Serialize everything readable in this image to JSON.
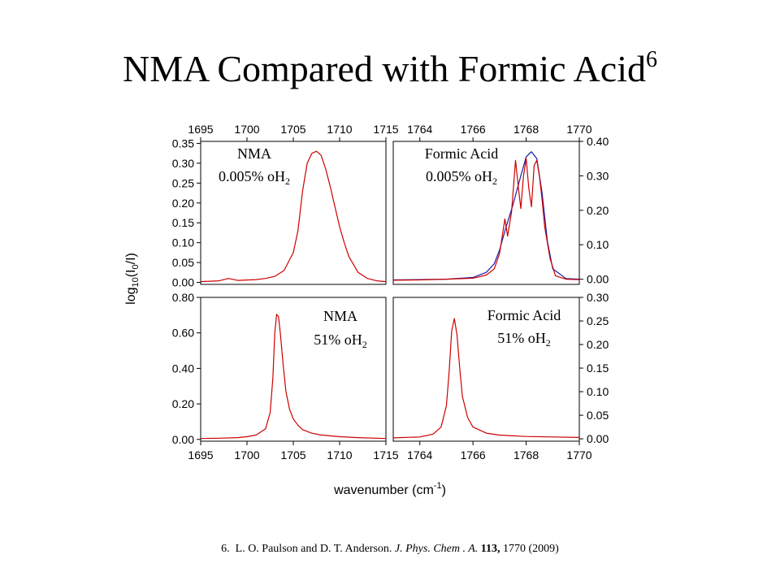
{
  "slide": {
    "title": "NMA Compared with Formic Acid",
    "title_superscript": "6",
    "footnote": {
      "number": "6.",
      "authors": "L. O. Paulson and D. T. Anderson.",
      "journal": "J. Phys. Chem . A.",
      "volume": "113,",
      "pages_year": "1770 (2009)"
    }
  },
  "chart_data": {
    "type": "line",
    "xlabel": "wavenumber (cm-1)",
    "ylabel": "log10(I0/I)",
    "colors": {
      "red": "#cc0000",
      "blue": "#1a1aa8"
    },
    "panels": [
      {
        "id": "nma-low",
        "xlim": [
          1695,
          1715
        ],
        "ylim": [
          -0.005,
          0.355
        ],
        "xticks": [
          1695,
          1700,
          1705,
          1710,
          1715
        ],
        "yticks": [
          0.0,
          0.05,
          0.1,
          0.15,
          0.2,
          0.25,
          0.3,
          0.35
        ],
        "ytick_labels": [
          "0.00",
          "0.05",
          "0.10",
          "0.15",
          "0.20",
          "0.25",
          "0.30",
          "0.35"
        ],
        "ytick_side": "left",
        "xticklabels_side": "top",
        "annotation": {
          "line1": "NMA",
          "line2": "0.005% oH",
          "sub": "2"
        },
        "series": [
          {
            "color": "red",
            "x": [
              1695,
              1696,
              1697,
              1698,
              1699,
              1700,
              1701,
              1702,
              1703,
              1704,
              1705,
              1705.5,
              1706,
              1706.5,
              1707,
              1707.5,
              1708,
              1708.5,
              1709,
              1709.5,
              1710,
              1710.5,
              1711,
              1712,
              1713,
              1714,
              1715
            ],
            "y": [
              0.002,
              0.003,
              0.004,
              0.01,
              0.005,
              0.006,
              0.007,
              0.01,
              0.015,
              0.03,
              0.075,
              0.13,
              0.23,
              0.3,
              0.325,
              0.33,
              0.32,
              0.285,
              0.24,
              0.19,
              0.14,
              0.1,
              0.065,
              0.025,
              0.01,
              0.004,
              0.002
            ]
          }
        ]
      },
      {
        "id": "fa-low",
        "xlim": [
          1763.0,
          1770
        ],
        "ylim": [
          -0.015,
          0.4
        ],
        "xticks": [
          1764,
          1766,
          1768,
          1770
        ],
        "yticks": [
          0.0,
          0.1,
          0.2,
          0.3,
          0.4
        ],
        "ytick_labels": [
          "0.00",
          "0.10",
          "0.20",
          "0.30",
          "0.40"
        ],
        "ytick_side": "right",
        "xticklabels_side": "top",
        "annotation": {
          "line1": "Formic Acid",
          "line2": "0.005% oH",
          "sub": "2"
        },
        "series": [
          {
            "color": "blue",
            "x": [
              1763.0,
              1764,
              1765,
              1766,
              1766.5,
              1766.8,
              1767.0,
              1767.2,
              1767.5,
              1767.8,
              1768.0,
              1768.2,
              1768.4,
              1768.6,
              1768.8,
              1769.0,
              1769.5,
              1770
            ],
            "y": [
              -0.002,
              -0.001,
              0.0,
              0.005,
              0.02,
              0.045,
              0.085,
              0.14,
              0.215,
              0.3,
              0.355,
              0.37,
              0.35,
              0.25,
              0.11,
              0.03,
              0.002,
              0.0
            ]
          },
          {
            "color": "red",
            "x": [
              1763.0,
              1764,
              1765,
              1766,
              1766.5,
              1766.8,
              1767.0,
              1767.2,
              1767.3,
              1767.45,
              1767.6,
              1767.7,
              1767.8,
              1767.9,
              1768.0,
              1768.1,
              1768.2,
              1768.3,
              1768.4,
              1768.5,
              1768.6,
              1768.7,
              1768.9,
              1769.1,
              1769.5,
              1770
            ],
            "y": [
              -0.003,
              -0.002,
              0.0,
              0.003,
              0.012,
              0.03,
              0.075,
              0.175,
              0.125,
              0.195,
              0.345,
              0.27,
              0.205,
              0.3,
              0.35,
              0.265,
              0.21,
              0.33,
              0.345,
              0.3,
              0.23,
              0.15,
              0.06,
              0.01,
              0.0,
              -0.001
            ]
          }
        ]
      },
      {
        "id": "nma-high",
        "xlim": [
          1695,
          1715
        ],
        "ylim": [
          -0.01,
          0.8
        ],
        "xticks": [
          1695,
          1700,
          1705,
          1710,
          1715
        ],
        "yticks": [
          0.0,
          0.2,
          0.4,
          0.6,
          0.8
        ],
        "ytick_labels": [
          "0.00",
          "0.20",
          "0.40",
          "0.60",
          "0.80"
        ],
        "ytick_side": "left",
        "xticklabels_side": "bottom",
        "annotation": {
          "line1": "NMA",
          "line2": "51% oH",
          "sub": "2"
        },
        "series": [
          {
            "color": "red",
            "x": [
              1695,
              1697,
              1699,
              1700,
              1701,
              1702,
              1702.5,
              1702.8,
              1703.0,
              1703.2,
              1703.4,
              1703.6,
              1703.9,
              1704.2,
              1704.6,
              1705.0,
              1705.5,
              1706,
              1707,
              1708,
              1710,
              1712,
              1715
            ],
            "y": [
              0.005,
              0.007,
              0.01,
              0.015,
              0.025,
              0.06,
              0.15,
              0.35,
              0.6,
              0.705,
              0.69,
              0.6,
              0.42,
              0.27,
              0.17,
              0.115,
              0.08,
              0.055,
              0.035,
              0.025,
              0.015,
              0.01,
              0.005
            ]
          }
        ]
      },
      {
        "id": "fa-high",
        "xlim": [
          1763.0,
          1770
        ],
        "ylim": [
          -0.005,
          0.3
        ],
        "xticks": [
          1764,
          1766,
          1768,
          1770
        ],
        "yticks": [
          0.0,
          0.05,
          0.1,
          0.15,
          0.2,
          0.25,
          0.3
        ],
        "ytick_labels": [
          "0.00",
          "0.05",
          "0.10",
          "0.15",
          "0.20",
          "0.25",
          "0.30"
        ],
        "ytick_side": "right",
        "xticklabels_side": "bottom",
        "annotation": {
          "line1": "Formic Acid",
          "line2": "51% oH",
          "sub": "2"
        },
        "series": [
          {
            "color": "red",
            "x": [
              1763.0,
              1764,
              1764.5,
              1764.8,
              1765.0,
              1765.1,
              1765.2,
              1765.3,
              1765.4,
              1765.5,
              1765.6,
              1765.8,
              1766.0,
              1766.5,
              1767,
              1768,
              1769,
              1770
            ],
            "y": [
              0.002,
              0.004,
              0.01,
              0.025,
              0.07,
              0.14,
              0.23,
              0.255,
              0.22,
              0.15,
              0.09,
              0.045,
              0.025,
              0.012,
              0.008,
              0.005,
              0.004,
              0.003
            ]
          }
        ]
      }
    ]
  }
}
